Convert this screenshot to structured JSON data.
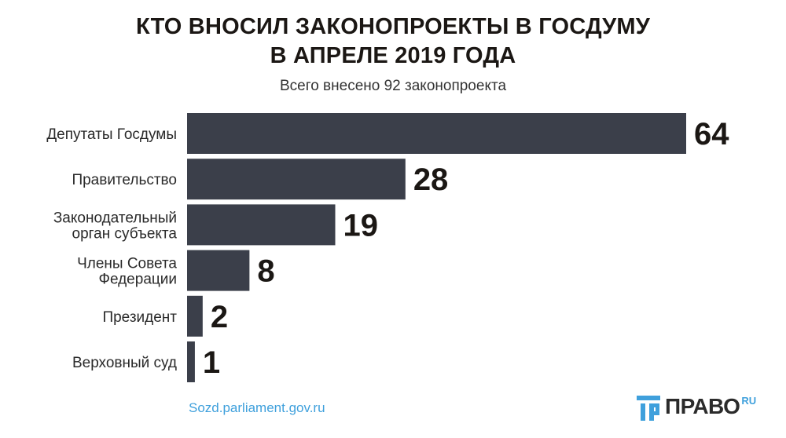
{
  "chart_data": {
    "type": "bar",
    "orientation": "horizontal",
    "title_lines": [
      "КТО ВНОСИЛ ЗАКОНОПРОЕКТЫ В ГОСДУМУ",
      "В АПРЕЛЕ 2019 ГОДА"
    ],
    "subtitle": "Всего внесено 92 законопроекта",
    "categories": [
      [
        "Депутаты Госдумы"
      ],
      [
        "Правительство"
      ],
      [
        "Законодательный",
        "орган субъекта"
      ],
      [
        "Члены Совета",
        "Федерации"
      ],
      [
        "Президент"
      ],
      [
        "Верховный суд"
      ]
    ],
    "values": [
      64,
      28,
      19,
      8,
      2,
      1
    ],
    "value_labels": [
      "64",
      "28",
      "19",
      "8",
      "2",
      "1"
    ],
    "bar_color": "#3b3f4a",
    "xlim": [
      0,
      64
    ]
  },
  "footer": {
    "source": "Sozd.parliament.gov.ru",
    "logo_text": "ПРАВО",
    "logo_suffix": "RU"
  },
  "colors": {
    "title": "#1b1714",
    "source": "#3fa0dc",
    "logo_accent": "#3fa0dc"
  }
}
